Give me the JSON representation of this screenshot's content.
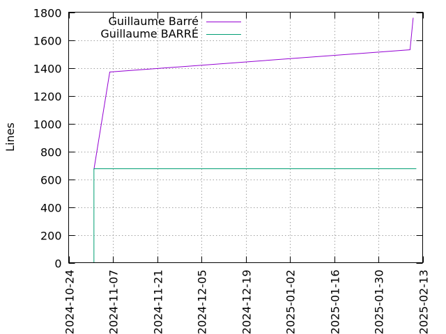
{
  "chart_data": {
    "type": "line",
    "ylabel": "Lines",
    "ylim": [
      0,
      1800
    ],
    "yticks": [
      0,
      200,
      400,
      600,
      800,
      1000,
      1200,
      1400,
      1600,
      1800
    ],
    "xlim": [
      "2024-10-24",
      "2025-02-13"
    ],
    "xticks": [
      "2024-10-24",
      "2024-11-07",
      "2024-11-21",
      "2024-12-05",
      "2024-12-19",
      "2025-01-02",
      "2025-01-16",
      "2025-01-30",
      "2025-02-13"
    ],
    "grid": true,
    "legend": "top-left",
    "series": [
      {
        "name": "Guillaume Barré",
        "color": "#9400d3",
        "points": [
          [
            "2024-11-01",
            670
          ],
          [
            "2024-11-06",
            1370
          ],
          [
            "2025-02-09",
            1530
          ],
          [
            "2025-02-10",
            1760
          ]
        ]
      },
      {
        "name": "Guillaume BARRÉ",
        "color": "#009e73",
        "points": [
          [
            "2024-11-01",
            0
          ],
          [
            "2024-11-01",
            675
          ],
          [
            "2025-02-11",
            675
          ]
        ]
      }
    ]
  }
}
